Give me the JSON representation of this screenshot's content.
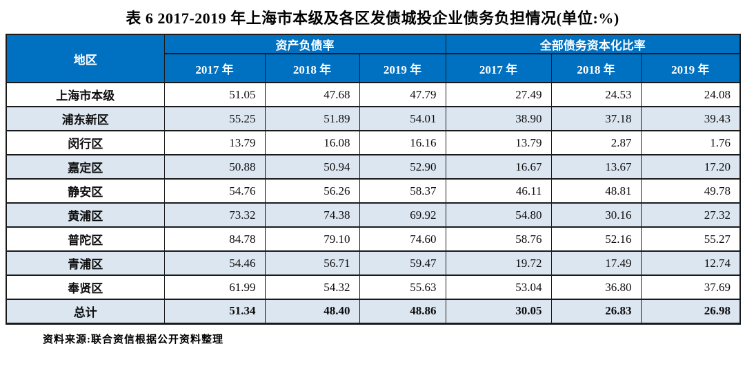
{
  "page": {
    "title": "表 6  2017-2019 年上海市本级及各区发债城投企业债务负担情况(单位:%)",
    "source_note": "资料来源:联合资信根据公开资料整理"
  },
  "table": {
    "region_header": "地区",
    "groups": [
      {
        "label": "资产负债率",
        "years": [
          "2017 年",
          "2018 年",
          "2019 年"
        ]
      },
      {
        "label": "全部债务资本化比率",
        "years": [
          "2017 年",
          "2018 年",
          "2019 年"
        ]
      }
    ],
    "rows": [
      {
        "region": "上海市本级",
        "values": [
          "51.05",
          "47.68",
          "47.79",
          "27.49",
          "24.53",
          "24.08"
        ],
        "is_total": false
      },
      {
        "region": "浦东新区",
        "values": [
          "55.25",
          "51.89",
          "54.01",
          "38.90",
          "37.18",
          "39.43"
        ],
        "is_total": false
      },
      {
        "region": "闵行区",
        "values": [
          "13.79",
          "16.08",
          "16.16",
          "13.79",
          "2.87",
          "1.76"
        ],
        "is_total": false
      },
      {
        "region": "嘉定区",
        "values": [
          "50.88",
          "50.94",
          "52.90",
          "16.67",
          "13.67",
          "17.20"
        ],
        "is_total": false
      },
      {
        "region": "静安区",
        "values": [
          "54.76",
          "56.26",
          "58.37",
          "46.11",
          "48.81",
          "49.78"
        ],
        "is_total": false
      },
      {
        "region": "黄浦区",
        "values": [
          "73.32",
          "74.38",
          "69.92",
          "54.80",
          "30.16",
          "27.32"
        ],
        "is_total": false
      },
      {
        "region": "普陀区",
        "values": [
          "84.78",
          "79.10",
          "74.60",
          "58.76",
          "52.16",
          "55.27"
        ],
        "is_total": false
      },
      {
        "region": "青浦区",
        "values": [
          "54.46",
          "56.71",
          "59.47",
          "19.72",
          "17.49",
          "12.74"
        ],
        "is_total": false
      },
      {
        "region": "奉贤区",
        "values": [
          "61.99",
          "54.32",
          "55.63",
          "53.04",
          "36.80",
          "37.69"
        ],
        "is_total": false
      },
      {
        "region": "总计",
        "values": [
          "51.34",
          "48.40",
          "48.86",
          "30.05",
          "26.83",
          "26.98"
        ],
        "is_total": true
      }
    ]
  },
  "colors": {
    "header_bg": "#0070C0",
    "band_bg": "#DCE6F1",
    "border": "#1A1A1A",
    "header_text": "#FFFFFF"
  }
}
